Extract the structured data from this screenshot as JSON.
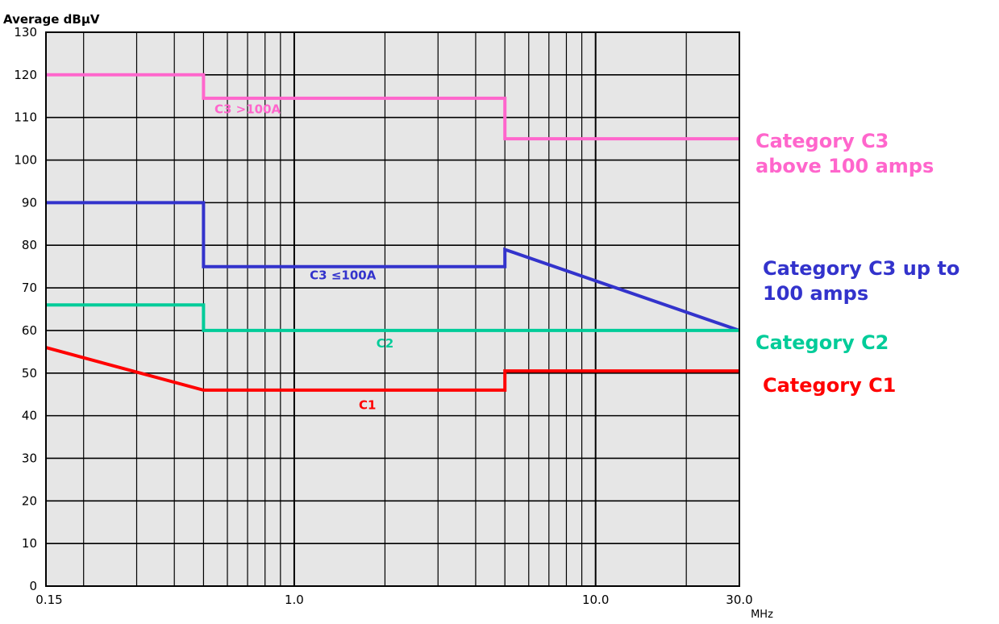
{
  "chart_data": {
    "type": "line",
    "ylabel": "Average dBµV",
    "xunit": "MHz",
    "x_scale": "log",
    "xlim": [
      0.15,
      30
    ],
    "ylim": [
      0,
      130
    ],
    "grid": true,
    "plot_background": "#e6e6e6",
    "x_tick_labels": [
      {
        "value": 0.15,
        "label": "0.15"
      },
      {
        "value": 1,
        "label": "1.0"
      },
      {
        "value": 10,
        "label": "10.0"
      },
      {
        "value": 30,
        "label": "30.0"
      }
    ],
    "x_minor_grid": [
      0.2,
      0.3,
      0.4,
      0.5,
      0.6,
      0.7,
      0.8,
      0.9,
      2,
      3,
      4,
      5,
      6,
      7,
      8,
      9,
      20
    ],
    "y_ticks": [
      0,
      10,
      20,
      30,
      40,
      50,
      60,
      70,
      80,
      90,
      100,
      110,
      120,
      130
    ],
    "series": [
      {
        "name": "C3 >100A",
        "legend": [
          "Category C3",
          "above 100 amps"
        ],
        "color": "#ff66cc",
        "points": [
          [
            0.15,
            120
          ],
          [
            0.5,
            120
          ],
          [
            0.5,
            114.5
          ],
          [
            5,
            114.5
          ],
          [
            5,
            105
          ],
          [
            30,
            105
          ]
        ],
        "label_at": [
          0.7,
          111
        ]
      },
      {
        "name": "C3 ≤100A",
        "legend": [
          "Category C3 up to",
          "100 amps"
        ],
        "color": "#3333cc",
        "points": [
          [
            0.15,
            90
          ],
          [
            0.5,
            90
          ],
          [
            0.5,
            75
          ],
          [
            5,
            75
          ],
          [
            5,
            79
          ],
          [
            30,
            60
          ]
        ],
        "label_at": [
          1.45,
          72
        ]
      },
      {
        "name": "C2",
        "legend": [
          "Category C2"
        ],
        "color": "#00cc99",
        "points": [
          [
            0.15,
            66
          ],
          [
            0.5,
            66
          ],
          [
            0.5,
            60
          ],
          [
            30,
            60
          ]
        ],
        "label_at": [
          2.0,
          56
        ]
      },
      {
        "name": "C1",
        "legend": [
          "Category C1"
        ],
        "color": "#ff0000",
        "points": [
          [
            0.15,
            56
          ],
          [
            0.5,
            46
          ],
          [
            5,
            46
          ],
          [
            5,
            50.5
          ],
          [
            30,
            50.5
          ]
        ],
        "label_at": [
          1.75,
          41.5
        ]
      }
    ]
  }
}
